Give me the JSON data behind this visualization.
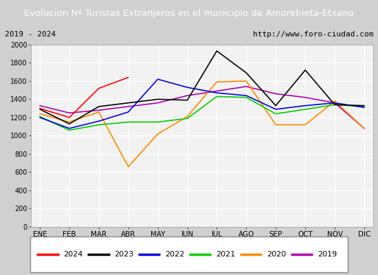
{
  "title": "Evolucion Nº Turistas Extranjeros en el municipio de Amorebieta-Etxano",
  "subtitle_left": "2019 - 2024",
  "subtitle_right": "http://www.foro-ciudad.com",
  "months": [
    "ENE",
    "FEB",
    "MAR",
    "ABR",
    "MAY",
    "JUN",
    "JUL",
    "AGO",
    "SEP",
    "OCT",
    "NOV",
    "DIC"
  ],
  "ylim": [
    0,
    2000
  ],
  "yticks": [
    0,
    200,
    400,
    600,
    800,
    1000,
    1200,
    1400,
    1600,
    1800,
    2000
  ],
  "series": {
    "2024": {
      "values": [
        1300,
        1200,
        1520,
        1640,
        null,
        null,
        null,
        null,
        null,
        null,
        null,
        null
      ],
      "color": "#ff0000",
      "linewidth": 1.2,
      "zorder": 6
    },
    "2023": {
      "values": [
        1290,
        1130,
        1320,
        1360,
        1400,
        1390,
        1930,
        1690,
        1330,
        1720,
        1340,
        1330
      ],
      "color": "#000000",
      "linewidth": 1.2,
      "zorder": 5
    },
    "2022": {
      "values": [
        1200,
        1080,
        1160,
        1260,
        1620,
        1530,
        1470,
        1440,
        1290,
        1330,
        1360,
        1310
      ],
      "color": "#0000dd",
      "linewidth": 1.2,
      "zorder": 4
    },
    "2021": {
      "values": [
        1210,
        1060,
        1120,
        1150,
        1150,
        1190,
        1430,
        1420,
        1240,
        1290,
        1340,
        1320
      ],
      "color": "#00cc00",
      "linewidth": 1.2,
      "zorder": 3
    },
    "2020": {
      "values": [
        1240,
        1150,
        1260,
        660,
        1020,
        1210,
        1590,
        1600,
        1120,
        1120,
        1380,
        1080
      ],
      "color": "#ff8800",
      "linewidth": 1.2,
      "zorder": 2
    },
    "2019": {
      "values": [
        1330,
        1250,
        1280,
        1320,
        1360,
        1440,
        1490,
        1540,
        1460,
        1420,
        1360,
        1080
      ],
      "color": "#aa00aa",
      "linewidth": 1.2,
      "zorder": 1
    }
  },
  "title_bg_color": "#5b9bd5",
  "title_text_color": "#ffffff",
  "subtitle_bg_color": "#f2f2f2",
  "plot_bg_color": "#f2f2f2",
  "grid_color": "#ffffff",
  "border_color": "#aaaaaa",
  "legend_order": [
    "2024",
    "2023",
    "2022",
    "2021",
    "2020",
    "2019"
  ]
}
